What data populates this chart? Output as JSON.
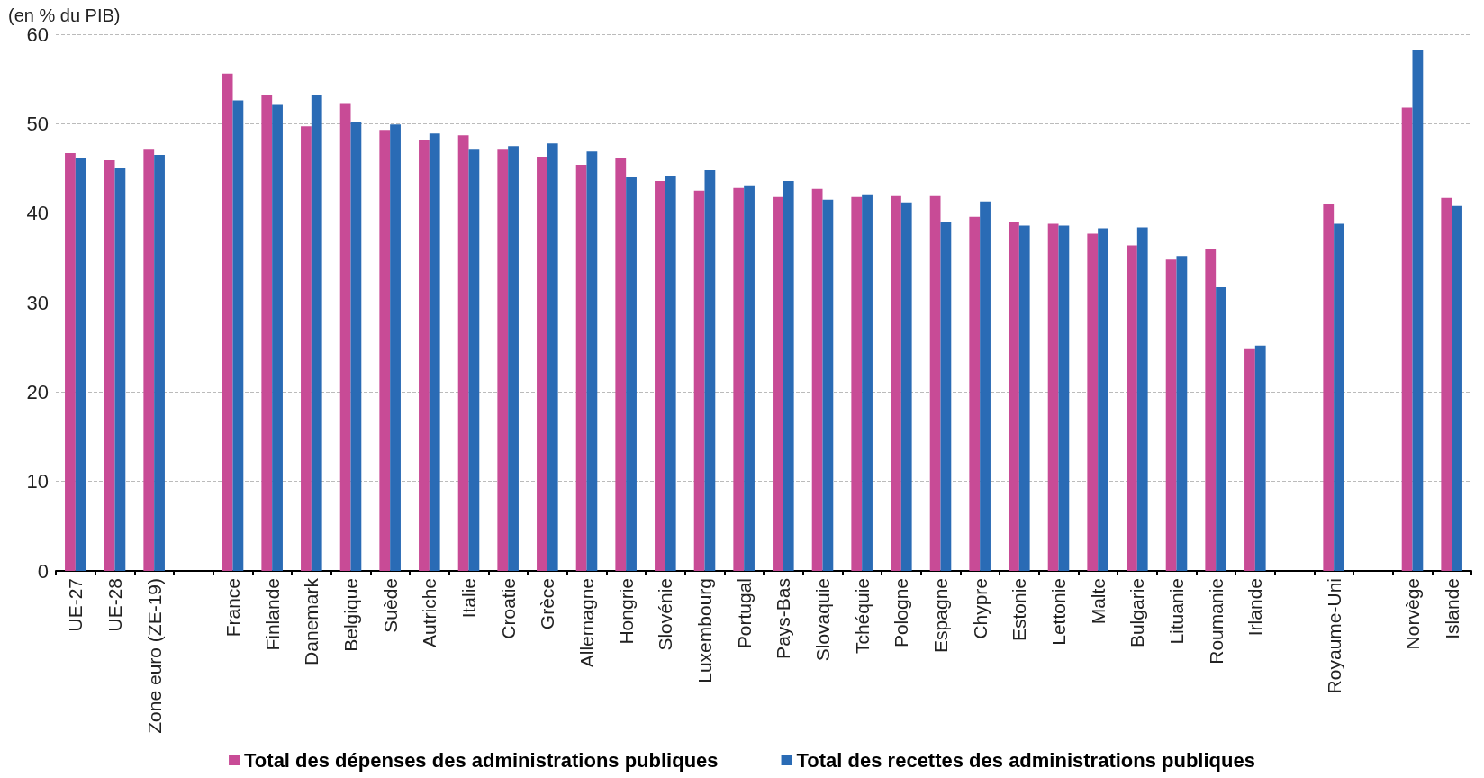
{
  "chart_data": {
    "type": "bar",
    "ylabel": "(en % du PIB)",
    "categories": [
      "UE-27",
      "UE-28",
      "Zone euro (ZE-19)",
      null,
      "France",
      "Finlande",
      "Danemark",
      "Belgique",
      "Suède",
      "Autriche",
      "Italie",
      "Croatie",
      "Grèce",
      "Allemagne",
      "Hongrie",
      "Slovénie",
      "Luxembourg",
      "Portugal",
      "Pays-Bas",
      "Slovaquie",
      "Tchéquie",
      "Pologne",
      "Espagne",
      "Chypre",
      "Estonie",
      "Lettonie",
      "Malte",
      "Bulgarie",
      "Lituanie",
      "Roumanie",
      "Irlande",
      null,
      "Royaume-Uni",
      null,
      "Norvège",
      "Islande"
    ],
    "series": [
      {
        "name": "Total des dépenses des administrations publiques",
        "color": "#c84b96",
        "values": [
          46.7,
          45.9,
          47.1,
          null,
          55.6,
          53.2,
          49.7,
          52.3,
          49.3,
          48.2,
          48.7,
          47.1,
          46.3,
          45.4,
          46.1,
          43.6,
          42.5,
          42.8,
          41.8,
          42.7,
          41.8,
          41.9,
          41.9,
          39.6,
          39.0,
          38.8,
          37.7,
          36.4,
          34.8,
          36.0,
          24.8,
          null,
          41.0,
          null,
          51.8,
          41.7
        ]
      },
      {
        "name": "Total des recettes des administrations publiques",
        "color": "#2a6bb5",
        "values": [
          46.1,
          45.0,
          46.5,
          null,
          52.6,
          52.1,
          53.2,
          50.2,
          49.9,
          48.9,
          47.1,
          47.5,
          47.8,
          46.9,
          44.0,
          44.2,
          44.8,
          43.0,
          43.6,
          41.5,
          42.1,
          41.2,
          39.0,
          41.3,
          38.6,
          38.6,
          38.3,
          38.4,
          35.2,
          31.7,
          25.2,
          null,
          38.8,
          null,
          58.2,
          40.8
        ]
      }
    ],
    "ylim": [
      0,
      60
    ],
    "yticks": [
      0,
      10,
      20,
      30,
      40,
      50,
      60
    ],
    "grid": "y",
    "legend": "bottom"
  }
}
